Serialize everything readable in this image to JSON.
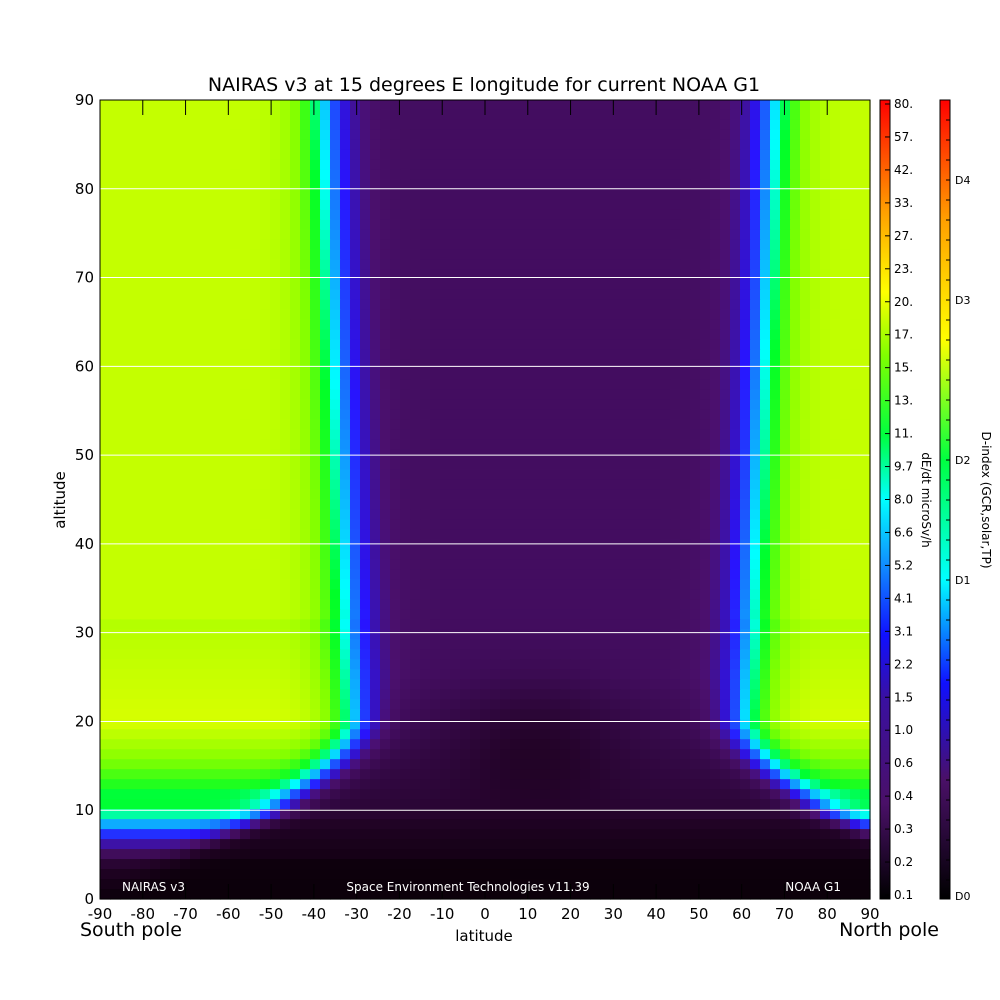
{
  "chart_data": {
    "type": "heatmap",
    "title": "NAIRAS v3 at 15 degrees E longitude for current NOAA G1",
    "xlabel": "latitude",
    "ylabel": "altitude",
    "xlim": [
      -90,
      90
    ],
    "ylim": [
      0,
      90
    ],
    "x_ticks": [
      "-90",
      "-80",
      "-70",
      "-60",
      "-50",
      "-40",
      "-30",
      "-20",
      "-10",
      "0",
      "10",
      "20",
      "30",
      "40",
      "50",
      "60",
      "70",
      "80",
      "90"
    ],
    "y_ticks": [
      "0",
      "10",
      "20",
      "30",
      "40",
      "50",
      "60",
      "70",
      "80",
      "90"
    ],
    "grid": "horizontal lines at y ticks",
    "x_end_labels": {
      "left": "South pole",
      "right": "North pole"
    },
    "annotations": {
      "left": "NAIRAS v3",
      "center": "Space Environment Technologies v11.39",
      "right": "NOAA G1"
    },
    "colorbar_dose": {
      "label": "dE/dt microSv/h",
      "ticks": [
        "80.",
        "57.",
        "42.",
        "33.",
        "27.",
        "23.",
        "20.",
        "17.",
        "15.",
        "13.",
        "11.",
        "9.7",
        "8.0",
        "6.6",
        "5.2",
        "4.1",
        "3.1",
        "2.2",
        "1.5",
        "1.0",
        "0.6",
        "0.4",
        "0.3",
        "0.2",
        "0.1"
      ]
    },
    "colorbar_dindex": {
      "label": "D-index (GCR,solar,TP)",
      "ticks": [
        "D4",
        "D3",
        "D2",
        "D1",
        "D0"
      ]
    },
    "profile_note": "dose rate low near equator (purple), rising poleward and with altitude to yellow-green above ~20 km",
    "colors": {
      "low": "#1a0010",
      "purple": "#4a1068",
      "blue": "#1010ff",
      "cyan": "#00ffff",
      "green": "#00ff20",
      "yellow_green": "#d8ff00",
      "red": "#ff1000"
    }
  }
}
